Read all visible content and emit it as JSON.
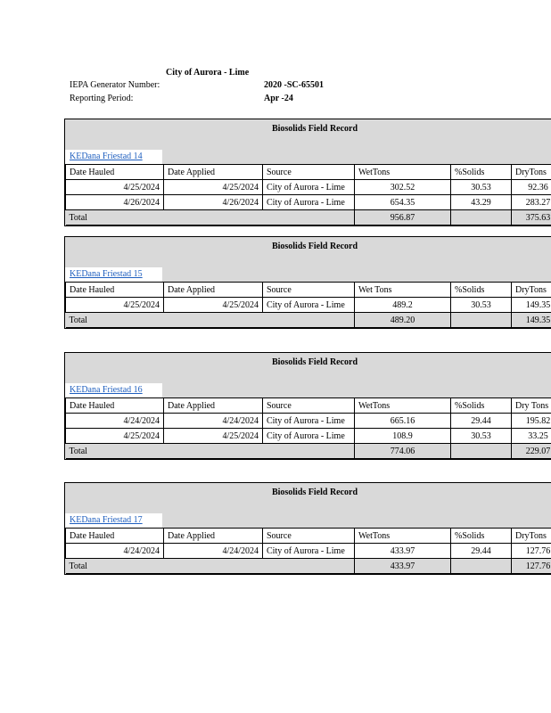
{
  "header": {
    "title": "City of Aurora - Lime",
    "generator_label": "IEPA Generator Number:",
    "generator_value": "2020 -SC-65501",
    "period_label": "Reporting Period:",
    "period_value": "Apr -24"
  },
  "records": [
    {
      "title": "Biosolids Field Record",
      "field": "KEDana Friestad 14",
      "columns": [
        "Date Hauled",
        "Date Applied",
        "Source",
        "WetTons",
        "%Solids",
        "DryTons"
      ],
      "rows": [
        [
          "4/25/2024",
          "4/25/2024",
          "City of Aurora - Lime",
          "302.52",
          "30.53",
          "92.36"
        ],
        [
          "4/26/2024",
          "4/26/2024",
          "City of Aurora - Lime",
          "654.35",
          "43.29",
          "283.27"
        ]
      ],
      "total_label": "Total",
      "total_wet": "956.87",
      "total_dry": "375.63"
    },
    {
      "title": "Biosolids Field Record",
      "field": "KEDana Friestad 15",
      "columns": [
        "Date Hauled",
        "Date Applied",
        "Source",
        "Wet Tons",
        "%Solids",
        "DryTons"
      ],
      "rows": [
        [
          "4/25/2024",
          "4/25/2024",
          "City of Aurora - Lime",
          "489.2",
          "30.53",
          "149.35"
        ]
      ],
      "total_label": "Total",
      "total_wet": "489.20",
      "total_dry": "149.35"
    },
    {
      "title": "Biosolids Field Record",
      "field": "KEDana Friestad 16",
      "columns": [
        "Date Hauled",
        "Date Applied",
        "Source",
        "WetTons",
        "%Solids",
        "Dry Tons"
      ],
      "rows": [
        [
          "4/24/2024",
          "4/24/2024",
          "City of Aurora - Lime",
          "665.16",
          "29.44",
          "195.82"
        ],
        [
          "4/25/2024",
          "4/25/2024",
          "City of Aurora - Lime",
          "108.9",
          "30.53",
          "33.25"
        ]
      ],
      "total_label": "Total",
      "total_wet": "774.06",
      "total_dry": "229.07"
    },
    {
      "title": "Biosolids Field Record",
      "field": "KEDana Friestad 17",
      "columns": [
        "Date Hauled",
        "Date Applied",
        "Source",
        "WetTons",
        "%Solids",
        "DryTons"
      ],
      "rows": [
        [
          "4/24/2024",
          "4/24/2024",
          "City of Aurora - Lime",
          "433.97",
          "29.44",
          "127.76"
        ]
      ],
      "total_label": "Total",
      "total_wet": "433.97",
      "total_dry": "127.76"
    }
  ]
}
